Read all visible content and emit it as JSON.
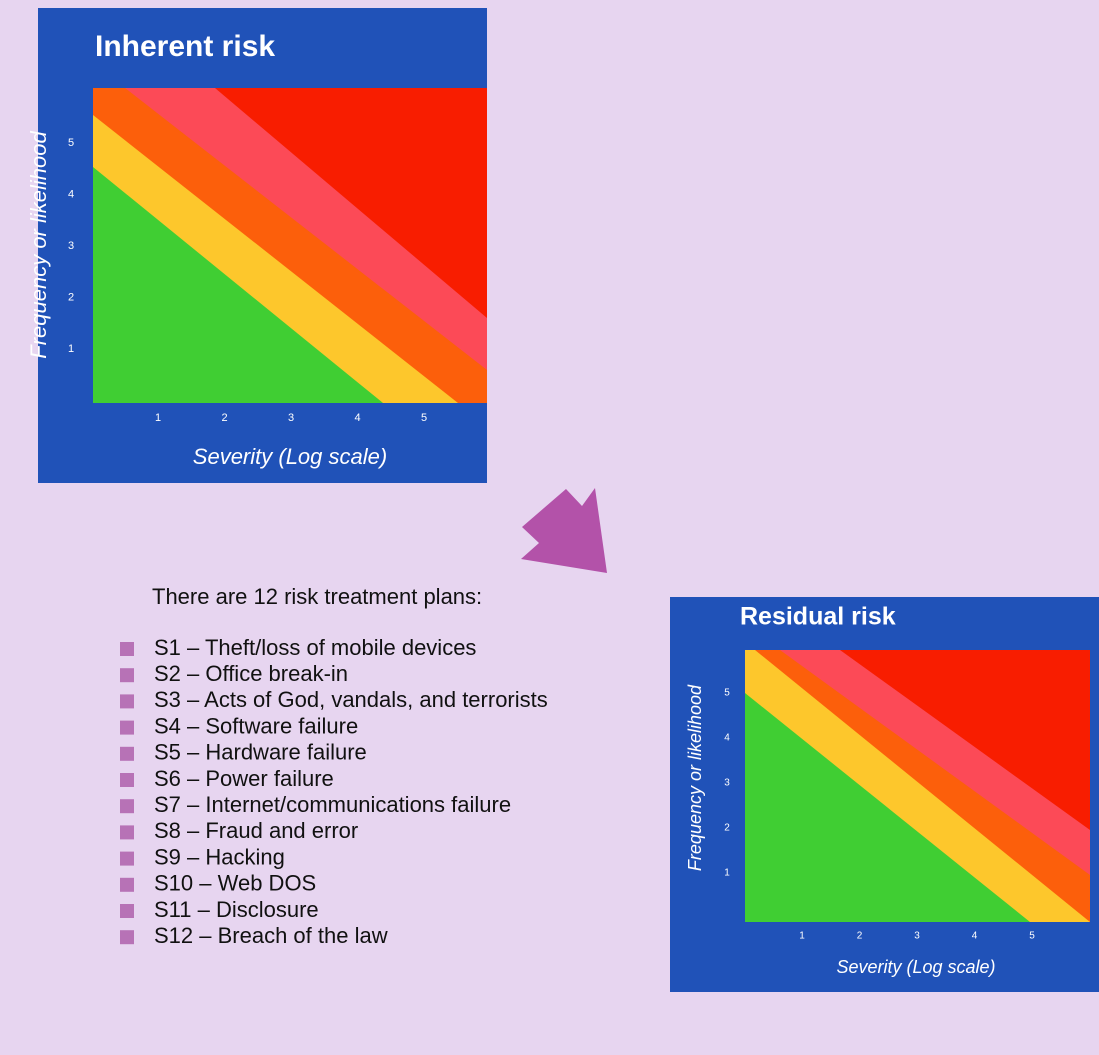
{
  "panels": [
    {
      "title": "Inherent risk",
      "x_axis_label": "Severity (Log scale)",
      "y_axis_label": "Frequency or likelihood",
      "xticks": [
        1,
        2,
        3,
        4,
        5
      ],
      "yticks": [
        1,
        2,
        3,
        4,
        5
      ]
    },
    {
      "title": "Residual risk",
      "x_axis_label": "Severity (Log scale)",
      "y_axis_label": "Frequency or likelihood",
      "xticks": [
        1,
        2,
        3,
        4,
        5
      ],
      "yticks": [
        1,
        2,
        3,
        4,
        5
      ]
    }
  ],
  "intro": "There are 12 risk treatment plans:",
  "items": [
    "S1 – Theft/loss of mobile devices",
    "S2 – Office break-in",
    "S3 – Acts of God, vandals, and terrorists",
    "S4 – Software failure",
    "S5 – Hardware failure",
    "S6 – Power failure",
    "S7 – Internet/communications failure",
    "S8 – Fraud and error",
    "S9 – Hacking",
    "S10 – Web DOS",
    "S11 – Disclosure",
    "S12 – Breach of the law"
  ]
}
